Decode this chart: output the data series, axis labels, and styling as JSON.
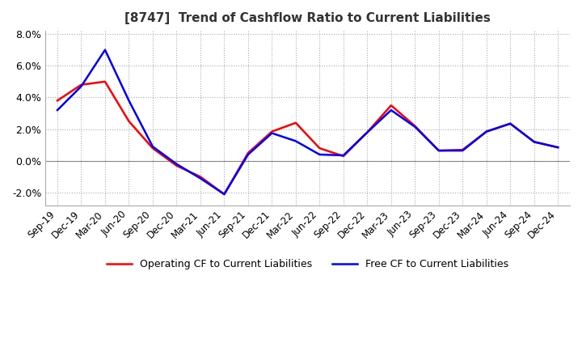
{
  "title": "[8747]  Trend of Cashflow Ratio to Current Liabilities",
  "x_labels": [
    "Sep-19",
    "Dec-19",
    "Mar-20",
    "Jun-20",
    "Sep-20",
    "Dec-20",
    "Mar-21",
    "Jun-21",
    "Sep-21",
    "Dec-21",
    "Mar-22",
    "Jun-22",
    "Sep-22",
    "Dec-22",
    "Mar-23",
    "Jun-23",
    "Sep-23",
    "Dec-23",
    "Mar-24",
    "Jun-24",
    "Sep-24",
    "Dec-24"
  ],
  "operating_cf": [
    3.8,
    4.8,
    5.0,
    2.5,
    0.8,
    -0.3,
    -1.0,
    -2.1,
    0.5,
    1.85,
    2.4,
    0.8,
    0.3,
    1.8,
    3.5,
    2.2,
    0.65,
    0.7,
    1.85,
    2.35,
    1.2,
    0.85
  ],
  "free_cf": [
    3.2,
    4.7,
    7.0,
    3.8,
    0.9,
    -0.2,
    -1.1,
    -2.1,
    0.4,
    1.75,
    1.25,
    0.4,
    0.35,
    1.8,
    3.2,
    2.15,
    0.65,
    0.65,
    1.85,
    2.35,
    1.2,
    0.85
  ],
  "operating_color": "#ff0000",
  "free_color": "#0000ff",
  "ylim": [
    -2.8,
    8.2
  ],
  "yticks": [
    -2.0,
    0.0,
    2.0,
    4.0,
    6.0,
    8.0
  ],
  "grid_color": "#aaaaaa",
  "grid_style": ":"
}
